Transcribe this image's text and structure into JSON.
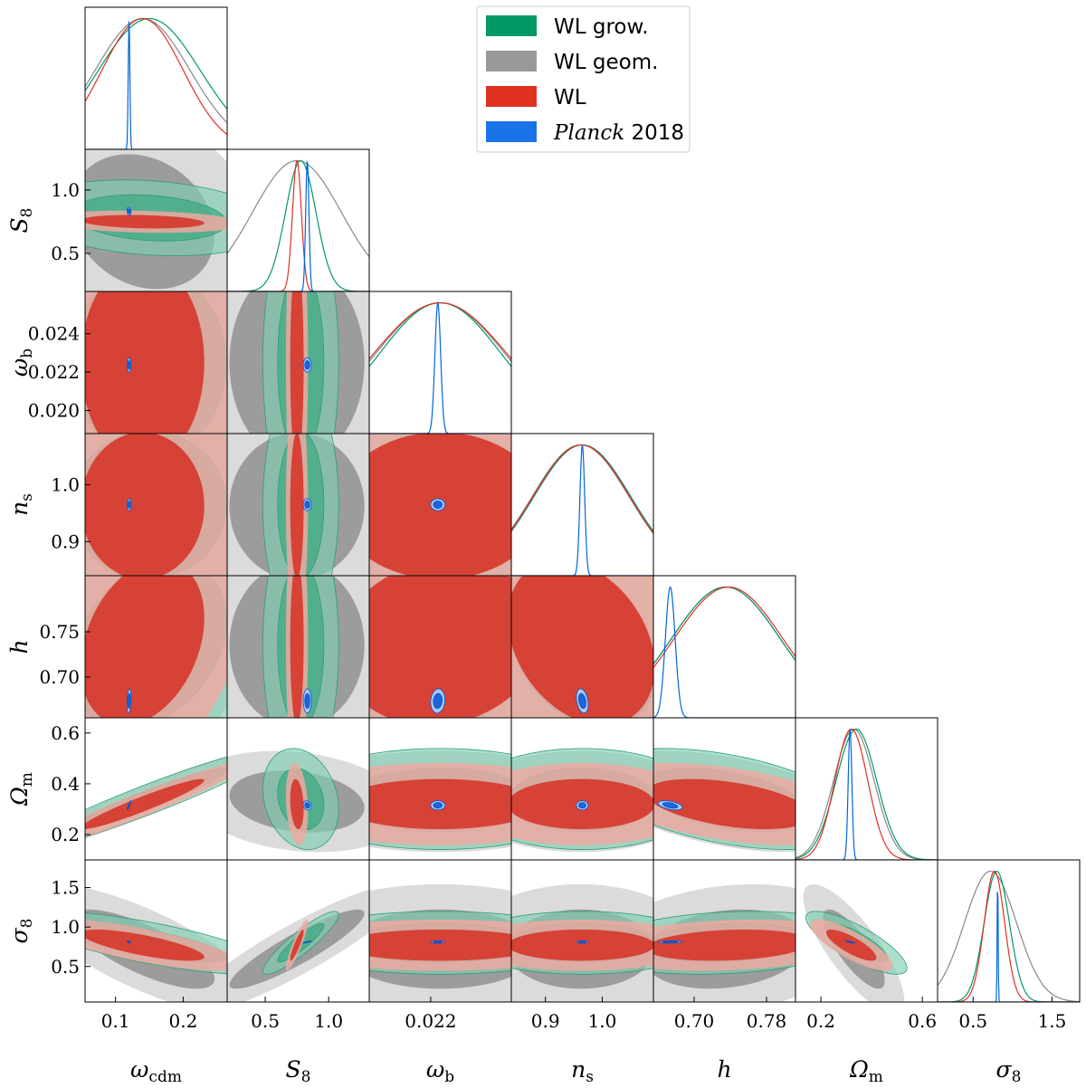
{
  "chart_data": {
    "type": "triangle-contour",
    "parameters": [
      {
        "key": "omega_cdm",
        "label": "ω",
        "sub": "cdm",
        "range": [
          0.055,
          0.265
        ],
        "ticks": [
          0.1,
          0.2
        ],
        "tick_labels": [
          "0.1",
          "0.2"
        ]
      },
      {
        "key": "S8",
        "label": "S",
        "sub": "8",
        "range": [
          0.2,
          1.32
        ],
        "ticks": [
          0.5,
          1.0
        ],
        "tick_labels": [
          "0.5",
          "1.0"
        ]
      },
      {
        "key": "omega_b",
        "label": "ω",
        "sub": "b",
        "range": [
          0.0188,
          0.0262
        ],
        "ticks": [
          0.022
        ],
        "tick_labels": [
          "0.022"
        ],
        "y_ticks": [
          0.02,
          0.022,
          0.024
        ],
        "y_tick_labels": [
          "0.020",
          "0.022",
          "0.024"
        ]
      },
      {
        "key": "n_s",
        "label": "n",
        "sub": "s",
        "range": [
          0.84,
          1.09
        ],
        "ticks": [
          0.9,
          1.0
        ],
        "tick_labels": [
          "0.9",
          "1.0"
        ]
      },
      {
        "key": "h",
        "label": "h",
        "sub": "",
        "range": [
          0.655,
          0.812
        ],
        "ticks": [
          0.7,
          0.78
        ],
        "tick_labels": [
          "0.70",
          "0.78"
        ],
        "y_ticks": [
          0.7,
          0.75
        ],
        "y_tick_labels": [
          "0.70",
          "0.75"
        ]
      },
      {
        "key": "Omega_m",
        "label": "Ω",
        "sub": "m",
        "range": [
          0.1,
          0.66
        ],
        "ticks": [
          0.2,
          0.6
        ],
        "tick_labels": [
          "0.2",
          "0.6"
        ],
        "y_ticks": [
          0.2,
          0.4,
          0.6
        ],
        "y_tick_labels": [
          "0.2",
          "0.4",
          "0.6"
        ]
      },
      {
        "key": "sigma8",
        "label": "σ",
        "sub": "8",
        "range": [
          0.05,
          1.85
        ],
        "ticks": [
          0.5,
          1.5
        ],
        "tick_labels": [
          "0.5",
          "1.5"
        ],
        "y_ticks": [
          0.5,
          1.0,
          1.5
        ],
        "y_tick_labels": [
          "0.5",
          "1.0",
          "1.5"
        ]
      }
    ],
    "series": [
      {
        "name": "WL grow.",
        "color": "#009966",
        "mean": {
          "omega_cdm": 0.15,
          "S8": 0.78,
          "omega_b": 0.0225,
          "n_s": 0.965,
          "h": 0.735,
          "Omega_m": 0.34,
          "sigma8": 0.8
        },
        "sigma": {
          "omega_cdm": 0.075,
          "S8": 0.12,
          "omega_b": 0.0032,
          "n_s": 0.085,
          "h": 0.06,
          "Omega_m": 0.08,
          "sigma8": 0.16
        }
      },
      {
        "name": "WL geom.",
        "color": "#888888",
        "mean": {
          "omega_cdm": 0.14,
          "S8": 0.75,
          "omega_b": 0.0225,
          "n_s": 0.962,
          "h": 0.735,
          "Omega_m": 0.33,
          "sigma8": 0.72
        },
        "sigma": {
          "omega_cdm": 0.07,
          "S8": 0.35,
          "omega_b": 0.0034,
          "n_s": 0.085,
          "h": 0.06,
          "Omega_m": 0.08,
          "sigma8": 0.33
        }
      },
      {
        "name": "WL",
        "color": "#e03020",
        "mean": {
          "omega_cdm": 0.14,
          "S8": 0.75,
          "omega_b": 0.0225,
          "n_s": 0.963,
          "h": 0.738,
          "Omega_m": 0.32,
          "sigma8": 0.77
        },
        "sigma": {
          "omega_cdm": 0.06,
          "S8": 0.035,
          "omega_b": 0.0035,
          "n_s": 0.085,
          "h": 0.06,
          "Omega_m": 0.065,
          "sigma8": 0.13
        }
      },
      {
        "name": "Planck 2018",
        "color": "#0066dd",
        "mean": {
          "omega_cdm": 0.12,
          "S8": 0.832,
          "omega_b": 0.02237,
          "n_s": 0.9649,
          "h": 0.6736,
          "Omega_m": 0.315,
          "sigma8": 0.811
        },
        "sigma": {
          "omega_cdm": 0.0012,
          "S8": 0.013,
          "omega_b": 0.00015,
          "n_s": 0.0042,
          "h": 0.0054,
          "Omega_m": 0.0073,
          "sigma8": 0.006
        }
      }
    ],
    "correlations": {
      "omega_cdm|Omega_m": 0.95,
      "S8|sigma8": 0.9,
      "omega_cdm|sigma8": -0.75,
      "Omega_m|sigma8": -0.8,
      "omega_cdm|S8": -0.2,
      "S8|Omega_m": -0.2,
      "omega_cdm|h": 0.3,
      "omega_b|h": 0.1,
      "n_s|h": -0.3,
      "h|Omega_m": -0.45,
      "h|sigma8": 0.2
    }
  },
  "legend": {
    "entries": [
      {
        "label": "WL grow.",
        "color": "#009966"
      },
      {
        "label": "WL geom.",
        "color": "#888888"
      },
      {
        "label": "WL",
        "color": "#e03020"
      },
      {
        "label_italic": "Planck",
        "label_rest": " 2018",
        "color": "#0066dd"
      }
    ]
  }
}
